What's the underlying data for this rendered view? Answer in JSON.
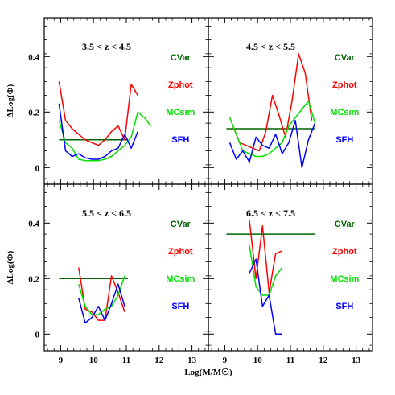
{
  "chart_data": {
    "type": "line",
    "xlabel": "Log(M/M☉)",
    "ylabel": "ΔLog(Φ)",
    "xlim": [
      8.5,
      13.5
    ],
    "ylim": [
      -0.06,
      0.54
    ],
    "x_ticks": [
      "9",
      "10",
      "11",
      "12",
      "13"
    ],
    "y_ticks": [
      "0",
      "0.2",
      "0.4"
    ],
    "legend": [
      {
        "name": "CVar",
        "color": "#006400"
      },
      {
        "name": "Zphot",
        "color": "#ff0000"
      },
      {
        "name": "MCsim",
        "color": "#00e000"
      },
      {
        "name": "SFH",
        "color": "#0000ff"
      }
    ],
    "panels": [
      {
        "title": "3.5 < z < 4.5",
        "series": [
          {
            "name": "CVar",
            "color": "#006400",
            "x": [
              8.95,
              11.05
            ],
            "y": [
              0.1,
              0.1
            ]
          },
          {
            "name": "Zphot",
            "color": "#ff0000",
            "x": [
              8.95,
              9.15,
              9.35,
              9.55,
              9.75,
              9.95,
              10.15,
              10.35,
              10.55,
              10.75,
              10.95,
              11.15,
              11.35
            ],
            "y": [
              0.31,
              0.17,
              0.14,
              0.12,
              0.1,
              0.09,
              0.08,
              0.1,
              0.13,
              0.15,
              0.1,
              0.3,
              0.26
            ]
          },
          {
            "name": "MCsim",
            "color": "#00e000",
            "x": [
              8.95,
              9.15,
              9.35,
              9.55,
              9.75,
              9.95,
              10.15,
              10.35,
              10.55,
              10.75,
              10.95,
              11.15,
              11.35,
              11.55,
              11.75
            ],
            "y": [
              0.17,
              0.09,
              0.07,
              0.03,
              0.025,
              0.025,
              0.025,
              0.03,
              0.04,
              0.06,
              0.08,
              0.11,
              0.2,
              0.18,
              0.15
            ]
          },
          {
            "name": "SFH",
            "color": "#0000ff",
            "x": [
              8.95,
              9.15,
              9.35,
              9.55,
              9.75,
              9.95,
              10.15,
              10.35,
              10.55,
              10.75,
              10.95,
              11.15,
              11.35
            ],
            "y": [
              0.23,
              0.06,
              0.04,
              0.05,
              0.035,
              0.03,
              0.03,
              0.04,
              0.06,
              0.07,
              0.12,
              0.07,
              0.13
            ]
          }
        ]
      },
      {
        "title": "4.5 < z < 5.5",
        "series": [
          {
            "name": "CVar",
            "color": "#006400",
            "x": [
              9.05,
              11.75
            ],
            "y": [
              0.14,
              0.14
            ]
          },
          {
            "name": "Zphot",
            "color": "#ff0000",
            "x": [
              9.25,
              9.45,
              9.65,
              9.85,
              10.05,
              10.25,
              10.45,
              10.65,
              10.85,
              11.05,
              11.25,
              11.45,
              11.65
            ],
            "y": [
              0.15,
              0.09,
              0.08,
              0.07,
              0.06,
              0.13,
              0.26,
              0.19,
              0.11,
              0.24,
              0.41,
              0.34,
              0.17
            ]
          },
          {
            "name": "MCsim",
            "color": "#00e000",
            "x": [
              9.15,
              9.35,
              9.55,
              9.75,
              9.95,
              10.15,
              10.35,
              10.55,
              10.75,
              10.95,
              11.15,
              11.35,
              11.55,
              11.75
            ],
            "y": [
              0.18,
              0.12,
              0.06,
              0.05,
              0.04,
              0.04,
              0.05,
              0.07,
              0.09,
              0.15,
              0.18,
              0.21,
              0.24,
              0.16
            ]
          },
          {
            "name": "SFH",
            "color": "#0000ff",
            "x": [
              9.15,
              9.35,
              9.55,
              9.75,
              9.95,
              10.15,
              10.35,
              10.55,
              10.75,
              10.95,
              11.15,
              11.35,
              11.55,
              11.75
            ],
            "y": [
              0.09,
              0.03,
              0.06,
              0.02,
              0.11,
              0.08,
              0.07,
              0.12,
              0.05,
              0.09,
              0.17,
              0.0,
              0.1,
              0.16
            ]
          }
        ]
      },
      {
        "title": "5.5 < z < 6.5",
        "series": [
          {
            "name": "CVar",
            "color": "#006400",
            "x": [
              8.95,
              11.05
            ],
            "y": [
              0.2,
              0.2
            ]
          },
          {
            "name": "Zphot",
            "color": "#ff0000",
            "x": [
              9.55,
              9.75,
              9.95,
              10.15,
              10.35,
              10.55,
              10.75,
              10.95
            ],
            "y": [
              0.24,
              0.09,
              0.08,
              0.05,
              0.05,
              0.21,
              0.15,
              0.08
            ]
          },
          {
            "name": "MCsim",
            "color": "#00e000",
            "x": [
              9.55,
              9.75,
              9.95,
              10.15,
              10.35,
              10.55,
              10.75,
              10.95
            ],
            "y": [
              0.18,
              0.1,
              0.07,
              0.07,
              0.09,
              0.1,
              0.14,
              0.21
            ]
          },
          {
            "name": "SFH",
            "color": "#0000ff",
            "x": [
              9.55,
              9.75,
              9.95,
              10.15,
              10.35,
              10.55,
              10.75,
              10.95
            ],
            "y": [
              0.13,
              0.04,
              0.06,
              0.1,
              0.05,
              0.11,
              0.18,
              0.1
            ]
          }
        ]
      },
      {
        "title": "6.5 < z < 7.5",
        "series": [
          {
            "name": "CVar",
            "color": "#006400",
            "x": [
              9.05,
              11.75
            ],
            "y": [
              0.36,
              0.36
            ]
          },
          {
            "name": "Zphot",
            "color": "#ff0000",
            "x": [
              9.75,
              9.95,
              10.15,
              10.35,
              10.55,
              10.75
            ],
            "y": [
              0.41,
              0.2,
              0.39,
              0.15,
              0.29,
              0.3
            ]
          },
          {
            "name": "MCsim",
            "color": "#00e000",
            "x": [
              9.75,
              9.95,
              10.15,
              10.35,
              10.55,
              10.75
            ],
            "y": [
              0.32,
              0.17,
              0.14,
              0.14,
              0.21,
              0.24
            ]
          },
          {
            "name": "SFH",
            "color": "#0000ff",
            "x": [
              9.75,
              9.95,
              10.15,
              10.35,
              10.55,
              10.75
            ],
            "y": [
              0.22,
              0.27,
              0.1,
              0.14,
              0.0,
              0.0
            ]
          }
        ]
      }
    ]
  }
}
